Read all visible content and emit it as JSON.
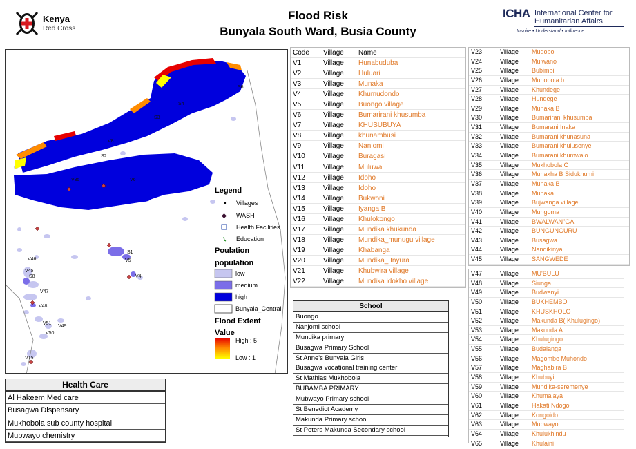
{
  "header": {
    "org_left": {
      "name": "Kenya",
      "sub": "Red Cross"
    },
    "title_line1": "Flood Risk",
    "title_line2": "Bunyala South Ward, Busia County",
    "org_right": {
      "acronym": "ICHA",
      "name_line1": "International Center for",
      "name_line2": "Humanitarian Affairs",
      "tagline": "Inspire • Understand • Influence"
    }
  },
  "legend": {
    "title": "Legend",
    "items": [
      {
        "label": "Villages",
        "icon": "dot-icon"
      },
      {
        "label": "WASH",
        "icon": "diamond-icon"
      },
      {
        "label": "Health Facilities",
        "icon": "cross-square-icon"
      },
      {
        "label": "Education",
        "icon": "education-icon"
      }
    ],
    "population_header": "Poulation",
    "population_sub": "population",
    "population_classes": [
      {
        "label": "low",
        "color": "#c6c6f0"
      },
      {
        "label": "medium",
        "color": "#7b6ee8"
      },
      {
        "label": "high",
        "color": "#0000dd"
      },
      {
        "label": "Bunyala_Central",
        "color": "#ffffff"
      }
    ],
    "flood_header": "Flood Extent",
    "flood_sub": "Value",
    "flood_high": "High : 5",
    "flood_low": "Low : 1",
    "flood_colors": [
      "#e60000",
      "#ff8c00",
      "#ffff00"
    ]
  },
  "map_labels": [
    "V46",
    "V45",
    "S8",
    "V47",
    "V48",
    "V51",
    "V50",
    "V49",
    "V15",
    "S1",
    "V5",
    "V4",
    "S6",
    "S2",
    "S3",
    "S4",
    "V35",
    "V8",
    "V6"
  ],
  "villages_a": [
    {
      "code": "Code",
      "village": "Village",
      "name": "Name"
    },
    {
      "code": "V1",
      "village": "Village",
      "name": "Hunabuduba"
    },
    {
      "code": "V2",
      "village": "Village",
      "name": "Huluari"
    },
    {
      "code": "V3",
      "village": "Village",
      "name": "Munaka"
    },
    {
      "code": "V4",
      "village": "Village",
      "name": "Khumudondo"
    },
    {
      "code": "V5",
      "village": "Village",
      "name": "Buongo village"
    },
    {
      "code": "V6",
      "village": "Village",
      "name": "Bumarirani khusumba"
    },
    {
      "code": "V7",
      "village": "Village",
      "name": "KHUSUBUYA"
    },
    {
      "code": "V8",
      "village": "Village",
      "name": "khunambusi"
    },
    {
      "code": "V9",
      "village": "Village",
      "name": "Nanjomi"
    },
    {
      "code": "V10",
      "village": "Village",
      "name": "Buragasi"
    },
    {
      "code": "V11",
      "village": "Village",
      "name": "Muluwa"
    },
    {
      "code": "V12",
      "village": "Village",
      "name": "Idoho"
    },
    {
      "code": "V13",
      "village": "Village",
      "name": "Idoho"
    },
    {
      "code": "V14",
      "village": "Village",
      "name": "Bukwoni"
    },
    {
      "code": "V15",
      "village": "Village",
      "name": "Iyanga B"
    },
    {
      "code": "V16",
      "village": "Village",
      "name": "Khulokongo"
    },
    {
      "code": "V17",
      "village": "Village",
      "name": "Mundika khukunda"
    },
    {
      "code": "V18",
      "village": "Village",
      "name": "Mundika_munugu village"
    },
    {
      "code": "V19",
      "village": "Village",
      "name": "Khabanga"
    },
    {
      "code": "V20",
      "village": "Village",
      "name": "Mundika_ Inyura"
    },
    {
      "code": "V21",
      "village": "Village",
      "name": "Khubwira village"
    },
    {
      "code": "V22",
      "village": "Village",
      "name": "Mundika idokho village"
    }
  ],
  "villages_b": [
    {
      "code": "V23",
      "village": "Village",
      "name": "Mudobo"
    },
    {
      "code": "V24",
      "village": "Village",
      "name": "Mulwano"
    },
    {
      "code": "V25",
      "village": "Village",
      "name": "Bubimbi"
    },
    {
      "code": "V26",
      "village": "Village",
      "name": "Muhobola b"
    },
    {
      "code": "V27",
      "village": "Village",
      "name": "Khundege"
    },
    {
      "code": "V28",
      "village": "Village",
      "name": "Hundege"
    },
    {
      "code": "V29",
      "village": "Village",
      "name": "Munaka B"
    },
    {
      "code": "V30",
      "village": "Village",
      "name": "Bumarirani khusumba"
    },
    {
      "code": "V31",
      "village": "Village",
      "name": "Bumarani Inaka"
    },
    {
      "code": "V32",
      "village": "Village",
      "name": "Bumarani khunasuna"
    },
    {
      "code": "V33",
      "village": "Village",
      "name": "Bumarani khulusenye"
    },
    {
      "code": "V34",
      "village": "Village",
      "name": "Bumarani khumwalo"
    },
    {
      "code": "V35",
      "village": "Village",
      "name": "Mukhobola C"
    },
    {
      "code": "V36",
      "village": "Village",
      "name": "Munakha B Sidukhumi"
    },
    {
      "code": "V37",
      "village": "Village",
      "name": "Munaka B"
    },
    {
      "code": "V38",
      "village": "Village",
      "name": "Munaka"
    },
    {
      "code": "V39",
      "village": "Village",
      "name": "Bujwanga village"
    },
    {
      "code": "V40",
      "village": "Village",
      "name": "Mungoma"
    },
    {
      "code": "V41",
      "village": "Village",
      "name": "BWALWAN\"GA"
    },
    {
      "code": "V42",
      "village": "Village",
      "name": "BUNGUNGURU"
    },
    {
      "code": "V43",
      "village": "Village",
      "name": "Busagwa"
    },
    {
      "code": "V44",
      "village": "Village",
      "name": "Nandikinya"
    },
    {
      "code": "V45",
      "village": "Village",
      "name": "SANGWEDE"
    }
  ],
  "villages_c": [
    {
      "code": "V47",
      "village": "Village",
      "name": "MU'BULU"
    },
    {
      "code": "V48",
      "village": "Village",
      "name": "Siunga"
    },
    {
      "code": "V49",
      "village": "Village",
      "name": "Budwenyi"
    },
    {
      "code": "V50",
      "village": "Village",
      "name": "BUKHEMBO"
    },
    {
      "code": "V51",
      "village": "Village",
      "name": "KHUSKHOLO"
    },
    {
      "code": "V52",
      "village": "Village",
      "name": "Makunda B( Khulugingo)"
    },
    {
      "code": "V53",
      "village": "Village",
      "name": "Makunda A"
    },
    {
      "code": "V54",
      "village": "Village",
      "name": "Khulugingo"
    },
    {
      "code": "V55",
      "village": "Village",
      "name": "Budalanga"
    },
    {
      "code": "V56",
      "village": "Village",
      "name": "Magombe Muhondo"
    },
    {
      "code": "V57",
      "village": "Village",
      "name": "Maghabira B"
    },
    {
      "code": "V58",
      "village": "Village",
      "name": "Khubuyi"
    },
    {
      "code": "V59",
      "village": "Village",
      "name": "Mundika-seremenye"
    },
    {
      "code": "V60",
      "village": "Village",
      "name": "Khumalaya"
    },
    {
      "code": "V61",
      "village": "Village",
      "name": "Hakati Ndogo"
    },
    {
      "code": "V62",
      "village": "Village",
      "name": "Kongoido"
    },
    {
      "code": "V63",
      "village": "Village",
      "name": "Mubwayo"
    },
    {
      "code": "V64",
      "village": "Village",
      "name": "Khulukhindu"
    },
    {
      "code": "V65",
      "village": "Village",
      "name": "Khulaini"
    }
  ],
  "school": {
    "header": "School",
    "rows": [
      "Buongo",
      "Nanjomi school",
      "Mundika primary",
      "Busagwa Primary School",
      "St Anne's Bunyala Girls",
      "Busagwa vocational training center",
      "St Mathias Mukhobola",
      "BUBAMBA PRIMARY",
      "Mubwayo Primary school",
      "St Benedict Academy",
      "Makunda Primary school",
      "St Peters Makunda Secondary school"
    ]
  },
  "health": {
    "header": "Health Care",
    "rows": [
      "Al Hakeem Med care",
      "Busagwa Dispensary",
      "Mukhobola sub county hospital",
      "Mubwayo chemistry"
    ]
  }
}
